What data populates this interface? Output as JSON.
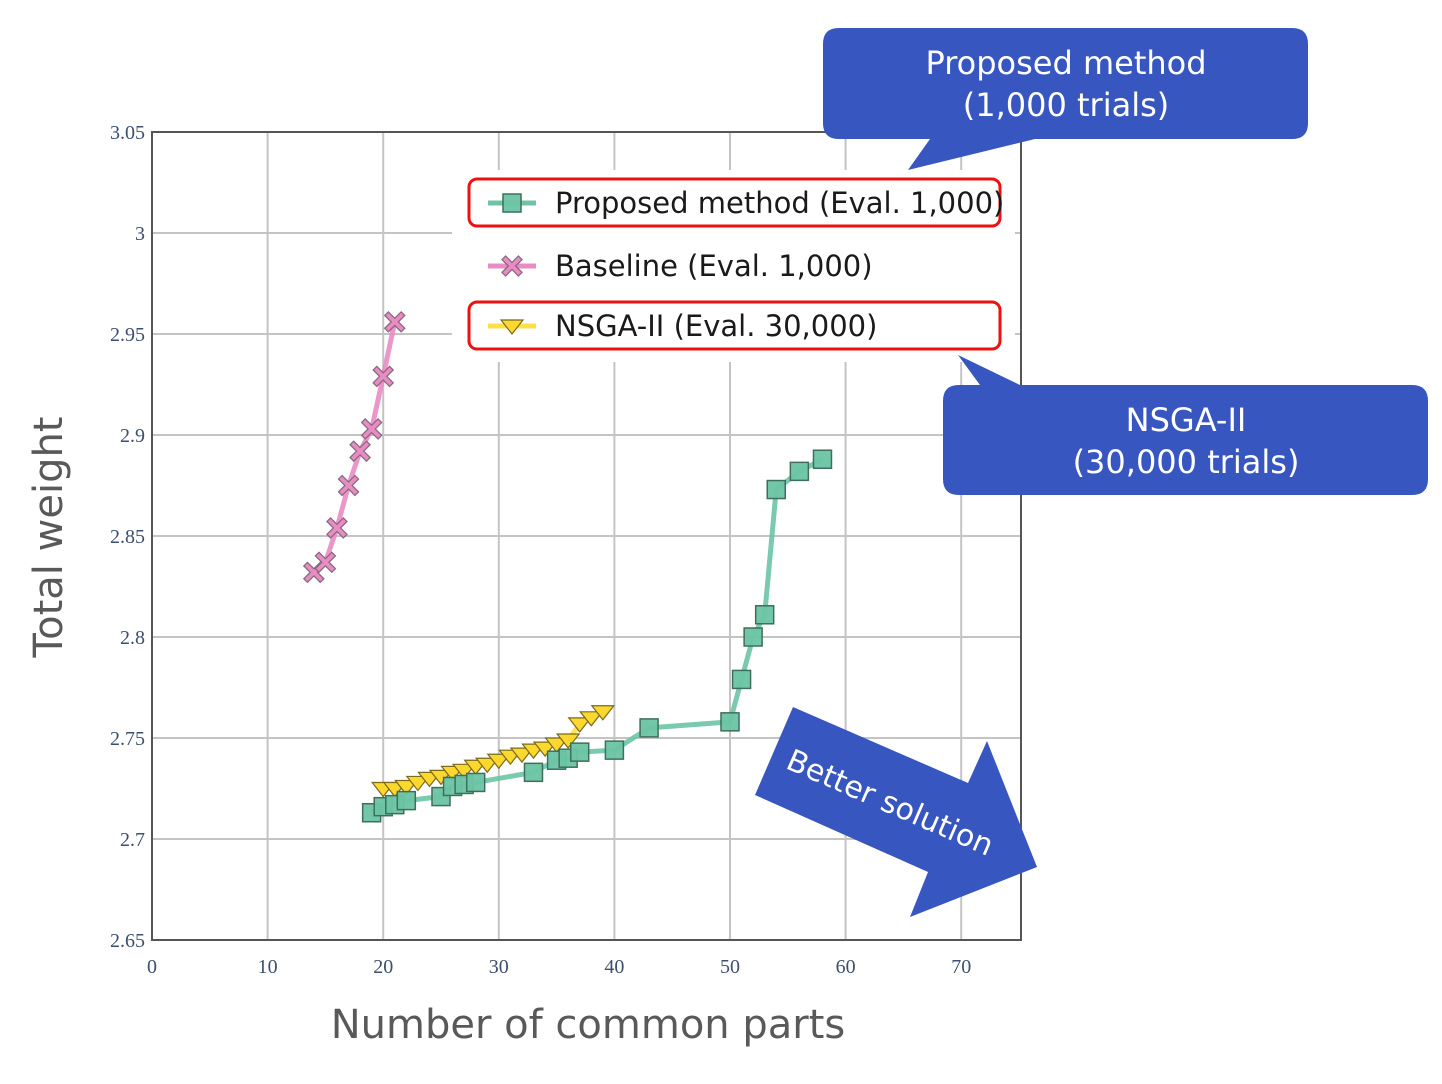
{
  "chart_data": {
    "type": "line",
    "title": "",
    "xlabel": "Number of common parts",
    "ylabel": "Total weight",
    "xlim": [
      0,
      75
    ],
    "ylim": [
      2.65,
      3.05
    ],
    "xticks": [
      "0",
      "10",
      "20",
      "30",
      "40",
      "50",
      "60",
      "70"
    ],
    "xtick_values": [
      0,
      10,
      20,
      30,
      40,
      50,
      60,
      70
    ],
    "yticks": [
      "2.65",
      "2.7",
      "2.75",
      "2.8",
      "2.85",
      "2.9",
      "2.95",
      "3",
      "3.05"
    ],
    "ytick_values": [
      2.65,
      2.7,
      2.75,
      2.8,
      2.85,
      2.9,
      2.95,
      3.0,
      3.05
    ],
    "grid": true,
    "legend_placement": "top-right",
    "series": [
      {
        "name": "Proposed method (Eval. 1,000)",
        "marker": "square",
        "color": "#6cc4a4",
        "line_color": "#6cc4a4",
        "highlighted": true,
        "x": [
          19,
          20,
          21,
          22,
          25,
          26,
          27,
          28,
          33,
          35,
          36,
          37,
          40,
          43,
          50,
          51,
          52,
          53,
          54,
          56,
          58
        ],
        "y": [
          2.713,
          2.716,
          2.717,
          2.719,
          2.721,
          2.726,
          2.727,
          2.728,
          2.733,
          2.739,
          2.74,
          2.743,
          2.744,
          2.755,
          2.758,
          2.779,
          2.8,
          2.811,
          2.873,
          2.882,
          2.888
        ]
      },
      {
        "name": "Baseline (Eval. 1,000)",
        "marker": "x",
        "color": "#e98cc4",
        "line_color": "#e98cc4",
        "highlighted": false,
        "x": [
          14,
          15,
          16,
          17,
          18,
          19,
          20,
          21
        ],
        "y": [
          2.832,
          2.837,
          2.854,
          2.875,
          2.892,
          2.903,
          2.929,
          2.956
        ]
      },
      {
        "name": "NSGA-II (Eval. 30,000)",
        "marker": "triangle-down",
        "color": "#fcd82e",
        "line_color": "#fce04a",
        "highlighted": true,
        "x": [
          20,
          21,
          22,
          23,
          24,
          25,
          26,
          27,
          28,
          29,
          30,
          31,
          32,
          33,
          34,
          35,
          36,
          37,
          38,
          39
        ],
        "y": [
          2.725,
          2.725,
          2.726,
          2.728,
          2.73,
          2.731,
          2.733,
          2.734,
          2.736,
          2.737,
          2.739,
          2.741,
          2.742,
          2.744,
          2.745,
          2.747,
          2.749,
          2.757,
          2.76,
          2.763
        ]
      }
    ],
    "annotations": [
      {
        "id": "callout-proposed",
        "lines": [
          "Proposed method",
          "(1,000 trials)"
        ]
      },
      {
        "id": "callout-nsga",
        "lines": [
          "NSGA-II",
          "(30,000 trials)"
        ]
      },
      {
        "id": "better-arrow",
        "text": "Better solution"
      }
    ]
  },
  "colors": {
    "callout_fill": "#3756c0",
    "highlight_border": "#ee1111",
    "grid": "#c4c4c4",
    "axis": "#555555"
  }
}
